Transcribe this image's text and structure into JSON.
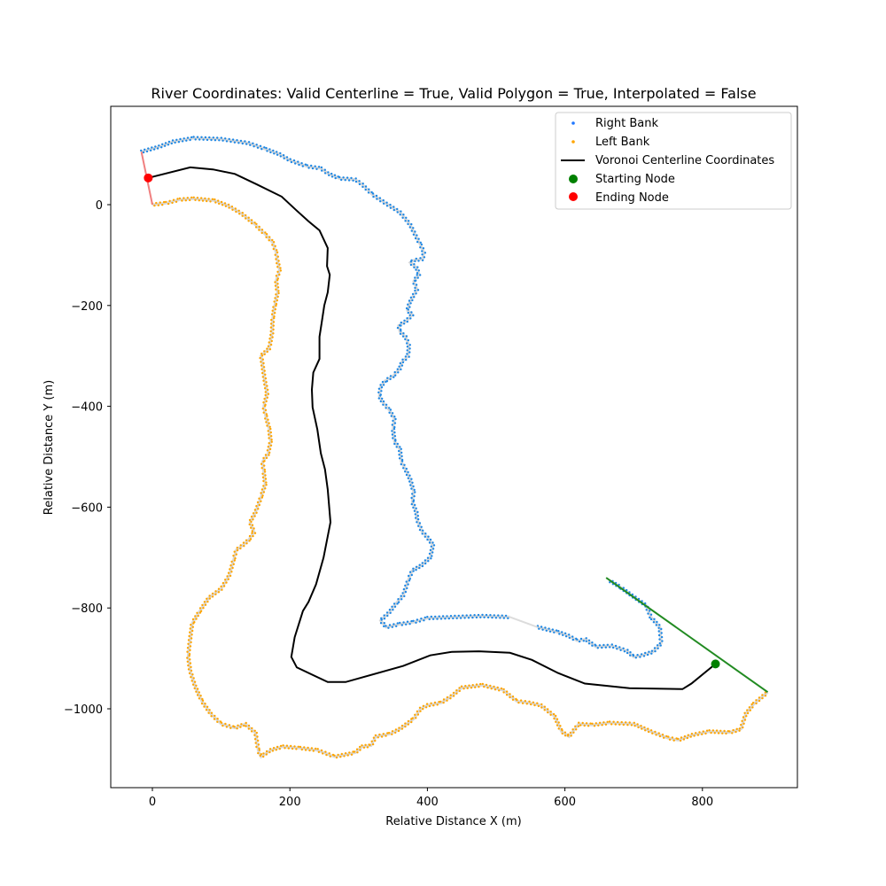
{
  "chart_data": {
    "type": "line",
    "title": "River Coordinates: Valid Centerline = True, Valid Polygon = True, Interpolated = False",
    "xlabel": "Relative Distance X (m)",
    "ylabel": "Relative Distance Y (m)",
    "xlim": [
      -60,
      935
    ],
    "ylim": [
      -1155,
      195
    ],
    "xticks": [
      0,
      200,
      400,
      600,
      800
    ],
    "yticks": [
      0,
      -200,
      -400,
      -600,
      -800,
      -1000
    ],
    "xtick_labels": [
      "0",
      "200",
      "400",
      "600",
      "800"
    ],
    "ytick_labels": [
      "0",
      "−200",
      "−400",
      "−600",
      "−800",
      "−1000"
    ],
    "grid": false,
    "legend_position": "upper right",
    "legend": [
      {
        "label": "Right Bank",
        "marker": "dot",
        "color": "#1f77ff"
      },
      {
        "label": "Left Bank",
        "marker": "dot",
        "color": "#ffa500"
      },
      {
        "label": "Voronoi Centerline Coordinates",
        "marker": "line",
        "color": "#000000"
      },
      {
        "label": "Starting Node",
        "marker": "circle",
        "color": "#008000"
      },
      {
        "label": "Ending Node",
        "marker": "circle",
        "color": "#ff0000"
      }
    ],
    "colors": {
      "right_bank": "#1e88e5",
      "left_bank": "#ffa500",
      "bank_line": "#d9d9d9",
      "centerline": "#000000",
      "start_node": "#008000",
      "end_node": "#ff0000",
      "start_edge": "#228b22",
      "end_edge": "#f08080"
    },
    "starting_node": {
      "x": 819,
      "y": -911
    },
    "ending_node": {
      "x": -6,
      "y": 53
    },
    "start_edge_line": [
      [
        660,
        -740
      ],
      [
        895,
        -967
      ]
    ],
    "end_edge_line": [
      [
        -16,
        105
      ],
      [
        0,
        0
      ]
    ],
    "centerline": [
      [
        -6,
        53
      ],
      [
        55,
        74
      ],
      [
        88,
        70
      ],
      [
        120,
        61
      ],
      [
        152,
        40
      ],
      [
        188,
        16
      ],
      [
        210,
        -12
      ],
      [
        227,
        -33
      ],
      [
        243,
        -51
      ],
      [
        255,
        -86
      ],
      [
        254,
        -122
      ],
      [
        258,
        -139
      ],
      [
        255,
        -174
      ],
      [
        250,
        -200
      ],
      [
        246,
        -236
      ],
      [
        243,
        -262
      ],
      [
        243,
        -306
      ],
      [
        234,
        -333
      ],
      [
        232,
        -367
      ],
      [
        233,
        -402
      ],
      [
        240,
        -446
      ],
      [
        245,
        -493
      ],
      [
        251,
        -525
      ],
      [
        255,
        -565
      ],
      [
        259,
        -630
      ],
      [
        249,
        -700
      ],
      [
        238,
        -753
      ],
      [
        227,
        -788
      ],
      [
        219,
        -806
      ],
      [
        207,
        -858
      ],
      [
        202,
        -897
      ],
      [
        210,
        -918
      ],
      [
        255,
        -947
      ],
      [
        281,
        -947
      ],
      [
        365,
        -915
      ],
      [
        404,
        -894
      ],
      [
        436,
        -887
      ],
      [
        475,
        -886
      ],
      [
        520,
        -889
      ],
      [
        552,
        -903
      ],
      [
        590,
        -929
      ],
      [
        629,
        -950
      ],
      [
        694,
        -959
      ],
      [
        771,
        -961
      ],
      [
        784,
        -950
      ],
      [
        819,
        -911
      ]
    ],
    "right_bank": [
      [
        -16,
        105
      ],
      [
        10,
        115
      ],
      [
        30,
        125
      ],
      [
        60,
        132
      ],
      [
        100,
        130
      ],
      [
        140,
        122
      ],
      [
        165,
        110
      ],
      [
        185,
        100
      ],
      [
        200,
        88
      ],
      [
        225,
        76
      ],
      [
        245,
        72
      ],
      [
        255,
        62
      ],
      [
        272,
        52
      ],
      [
        295,
        50
      ],
      [
        305,
        40
      ],
      [
        320,
        20
      ],
      [
        340,
        2
      ],
      [
        360,
        -15
      ],
      [
        375,
        -40
      ],
      [
        383,
        -62
      ],
      [
        390,
        -80
      ],
      [
        395,
        -95
      ],
      [
        393,
        -108
      ],
      [
        381,
        -110
      ],
      [
        375,
        -115
      ],
      [
        384,
        -125
      ],
      [
        388,
        -138
      ],
      [
        380,
        -152
      ],
      [
        385,
        -168
      ],
      [
        379,
        -182
      ],
      [
        374,
        -195
      ],
      [
        371,
        -210
      ],
      [
        378,
        -218
      ],
      [
        370,
        -230
      ],
      [
        358,
        -240
      ],
      [
        360,
        -252
      ],
      [
        368,
        -262
      ],
      [
        373,
        -278
      ],
      [
        372,
        -300
      ],
      [
        363,
        -312
      ],
      [
        360,
        -325
      ],
      [
        350,
        -340
      ],
      [
        338,
        -350
      ],
      [
        332,
        -362
      ],
      [
        330,
        -380
      ],
      [
        335,
        -392
      ],
      [
        345,
        -408
      ],
      [
        352,
        -425
      ],
      [
        350,
        -445
      ],
      [
        352,
        -470
      ],
      [
        360,
        -485
      ],
      [
        362,
        -510
      ],
      [
        368,
        -525
      ],
      [
        375,
        -545
      ],
      [
        380,
        -570
      ],
      [
        378,
        -590
      ],
      [
        384,
        -610
      ],
      [
        385,
        -625
      ],
      [
        392,
        -648
      ],
      [
        400,
        -660
      ],
      [
        408,
        -675
      ],
      [
        404,
        -700
      ],
      [
        392,
        -715
      ],
      [
        378,
        -726
      ],
      [
        372,
        -745
      ],
      [
        365,
        -775
      ],
      [
        355,
        -790
      ],
      [
        345,
        -808
      ],
      [
        332,
        -825
      ],
      [
        340,
        -838
      ],
      [
        360,
        -832
      ],
      [
        380,
        -828
      ],
      [
        400,
        -820
      ],
      [
        440,
        -818
      ],
      [
        480,
        -816
      ],
      [
        520,
        -818
      ],
      [
        560,
        -838
      ],
      [
        590,
        -848
      ],
      [
        605,
        -855
      ],
      [
        618,
        -865
      ],
      [
        630,
        -862
      ],
      [
        645,
        -877
      ],
      [
        668,
        -875
      ],
      [
        690,
        -885
      ],
      [
        700,
        -897
      ],
      [
        712,
        -894
      ],
      [
        728,
        -887
      ],
      [
        740,
        -870
      ],
      [
        738,
        -838
      ],
      [
        725,
        -818
      ],
      [
        718,
        -795
      ],
      [
        695,
        -773
      ],
      [
        680,
        -758
      ],
      [
        664,
        -745
      ]
    ],
    "left_bank": [
      [
        0,
        0
      ],
      [
        20,
        3
      ],
      [
        40,
        10
      ],
      [
        60,
        12
      ],
      [
        90,
        8
      ],
      [
        110,
        -2
      ],
      [
        130,
        -18
      ],
      [
        150,
        -40
      ],
      [
        165,
        -60
      ],
      [
        175,
        -75
      ],
      [
        180,
        -95
      ],
      [
        182,
        -112
      ],
      [
        185,
        -130
      ],
      [
        180,
        -150
      ],
      [
        182,
        -175
      ],
      [
        178,
        -200
      ],
      [
        175,
        -225
      ],
      [
        174,
        -255
      ],
      [
        170,
        -285
      ],
      [
        158,
        -300
      ],
      [
        160,
        -315
      ],
      [
        163,
        -345
      ],
      [
        167,
        -375
      ],
      [
        162,
        -400
      ],
      [
        165,
        -420
      ],
      [
        170,
        -445
      ],
      [
        172,
        -470
      ],
      [
        168,
        -495
      ],
      [
        160,
        -510
      ],
      [
        162,
        -530
      ],
      [
        164,
        -555
      ],
      [
        158,
        -580
      ],
      [
        150,
        -610
      ],
      [
        142,
        -630
      ],
      [
        148,
        -650
      ],
      [
        140,
        -665
      ],
      [
        132,
        -675
      ],
      [
        122,
        -685
      ],
      [
        118,
        -705
      ],
      [
        112,
        -735
      ],
      [
        100,
        -762
      ],
      [
        82,
        -780
      ],
      [
        68,
        -808
      ],
      [
        58,
        -830
      ],
      [
        55,
        -860
      ],
      [
        52,
        -895
      ],
      [
        55,
        -925
      ],
      [
        62,
        -955
      ],
      [
        72,
        -985
      ],
      [
        85,
        -1010
      ],
      [
        100,
        -1030
      ],
      [
        120,
        -1038
      ],
      [
        135,
        -1030
      ],
      [
        150,
        -1048
      ],
      [
        154,
        -1083
      ],
      [
        158,
        -1095
      ],
      [
        172,
        -1082
      ],
      [
        190,
        -1075
      ],
      [
        215,
        -1078
      ],
      [
        240,
        -1082
      ],
      [
        265,
        -1095
      ],
      [
        295,
        -1087
      ],
      [
        305,
        -1075
      ],
      [
        318,
        -1073
      ],
      [
        325,
        -1055
      ],
      [
        345,
        -1050
      ],
      [
        360,
        -1040
      ],
      [
        380,
        -1020
      ],
      [
        390,
        -1000
      ],
      [
        400,
        -993
      ],
      [
        420,
        -988
      ],
      [
        435,
        -975
      ],
      [
        450,
        -958
      ],
      [
        480,
        -953
      ],
      [
        510,
        -963
      ],
      [
        530,
        -985
      ],
      [
        548,
        -988
      ],
      [
        565,
        -993
      ],
      [
        585,
        -1015
      ],
      [
        595,
        -1045
      ],
      [
        606,
        -1055
      ],
      [
        620,
        -1030
      ],
      [
        640,
        -1032
      ],
      [
        665,
        -1028
      ],
      [
        700,
        -1030
      ],
      [
        725,
        -1045
      ],
      [
        750,
        -1058
      ],
      [
        765,
        -1062
      ],
      [
        785,
        -1052
      ],
      [
        810,
        -1045
      ],
      [
        840,
        -1047
      ],
      [
        856,
        -1040
      ],
      [
        863,
        -1010
      ],
      [
        875,
        -990
      ],
      [
        895,
        -967
      ]
    ],
    "right_bank_gap": [
      [
        520,
        -818
      ],
      [
        560,
        -838
      ]
    ]
  }
}
